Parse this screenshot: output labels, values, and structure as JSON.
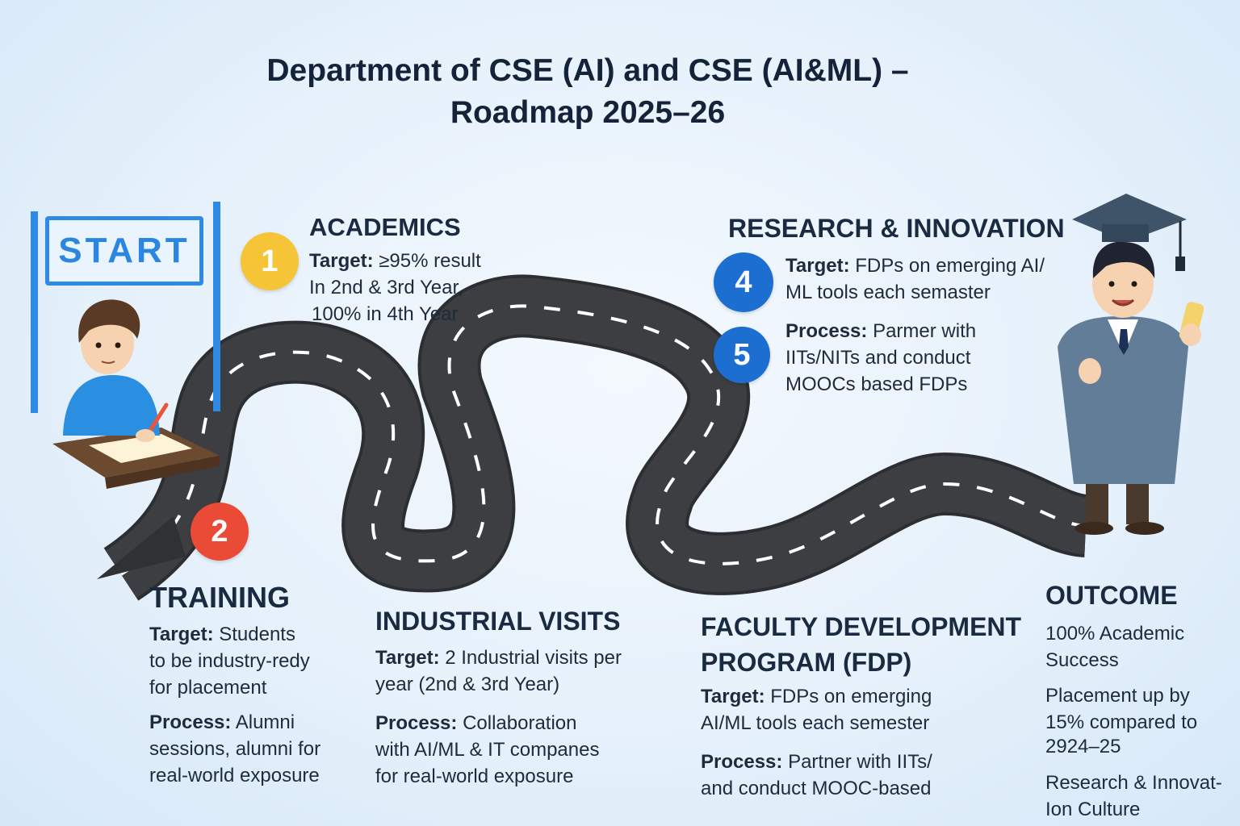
{
  "title": {
    "line1": "Department of CSE (AI) and CSE (AI&ML) –",
    "line2": "Roadmap 2025–26"
  },
  "start_label": "START",
  "colors": {
    "badge1": "#f6c437",
    "badge2": "#ea4b37",
    "badge4": "#1c6fd1",
    "badge5": "#1c6fd1",
    "road": "#3a3c40",
    "sign": "#2f8ae6"
  },
  "academics": {
    "number": "1",
    "heading": "ACADEMICS",
    "target_label": "Target:",
    "target_line1": "≥95% result",
    "target_line2": "In 2nd & 3rd Year,",
    "target_line3": "100% in 4th Year"
  },
  "training": {
    "number": "2",
    "heading": "TRAINING",
    "target_label": "Target:",
    "target_line1": "Students",
    "target_line2": "to be industry-redy",
    "target_line3": "for placement",
    "process_label": "Process:",
    "process_line1": "Alumni",
    "process_line2": "sessions, alumni for",
    "process_line3": "real-world exposure"
  },
  "industrial_visits": {
    "heading": "INDUSTRIAL VISITS",
    "target_label": "Target:",
    "target_line1": "2 Industrial visits per",
    "target_line2": "year (2nd & 3rd Year)",
    "process_label": "Process:",
    "process_line1": "Collaboration",
    "process_line2": "with AI/ML & IT companes",
    "process_line3": "for real-world exposure"
  },
  "research": {
    "heading": "RESEARCH & INNOVATION",
    "number4": "4",
    "number5": "5",
    "target_label": "Target:",
    "target_line1": "FDPs on emerging AI/",
    "target_line2": "ML tools each semaster",
    "process_label": "Process:",
    "process_line1": "Parmer with",
    "process_line2": "IITs/NITs and conduct",
    "process_line3": "MOOCs based FDPs"
  },
  "fdp": {
    "heading_line1": "FACULTY DEVELOPMENT",
    "heading_line2": "PROGRAM (FDP)",
    "target_label": "Target:",
    "target_line1": "FDPs on emerging",
    "target_line2": "AI/ML tools each semester",
    "process_label": "Process:",
    "process_line1": "Partner with IITs/",
    "process_line2": "and conduct MOOC-based"
  },
  "outcome": {
    "heading": "OUTCOME",
    "line1": "100% Academic",
    "line2": "Success",
    "line3": "Placement up by",
    "line4": "15% compared to",
    "line5": "2924–25",
    "line6": "Research & Innovat-",
    "line7": "Ion Culture"
  }
}
